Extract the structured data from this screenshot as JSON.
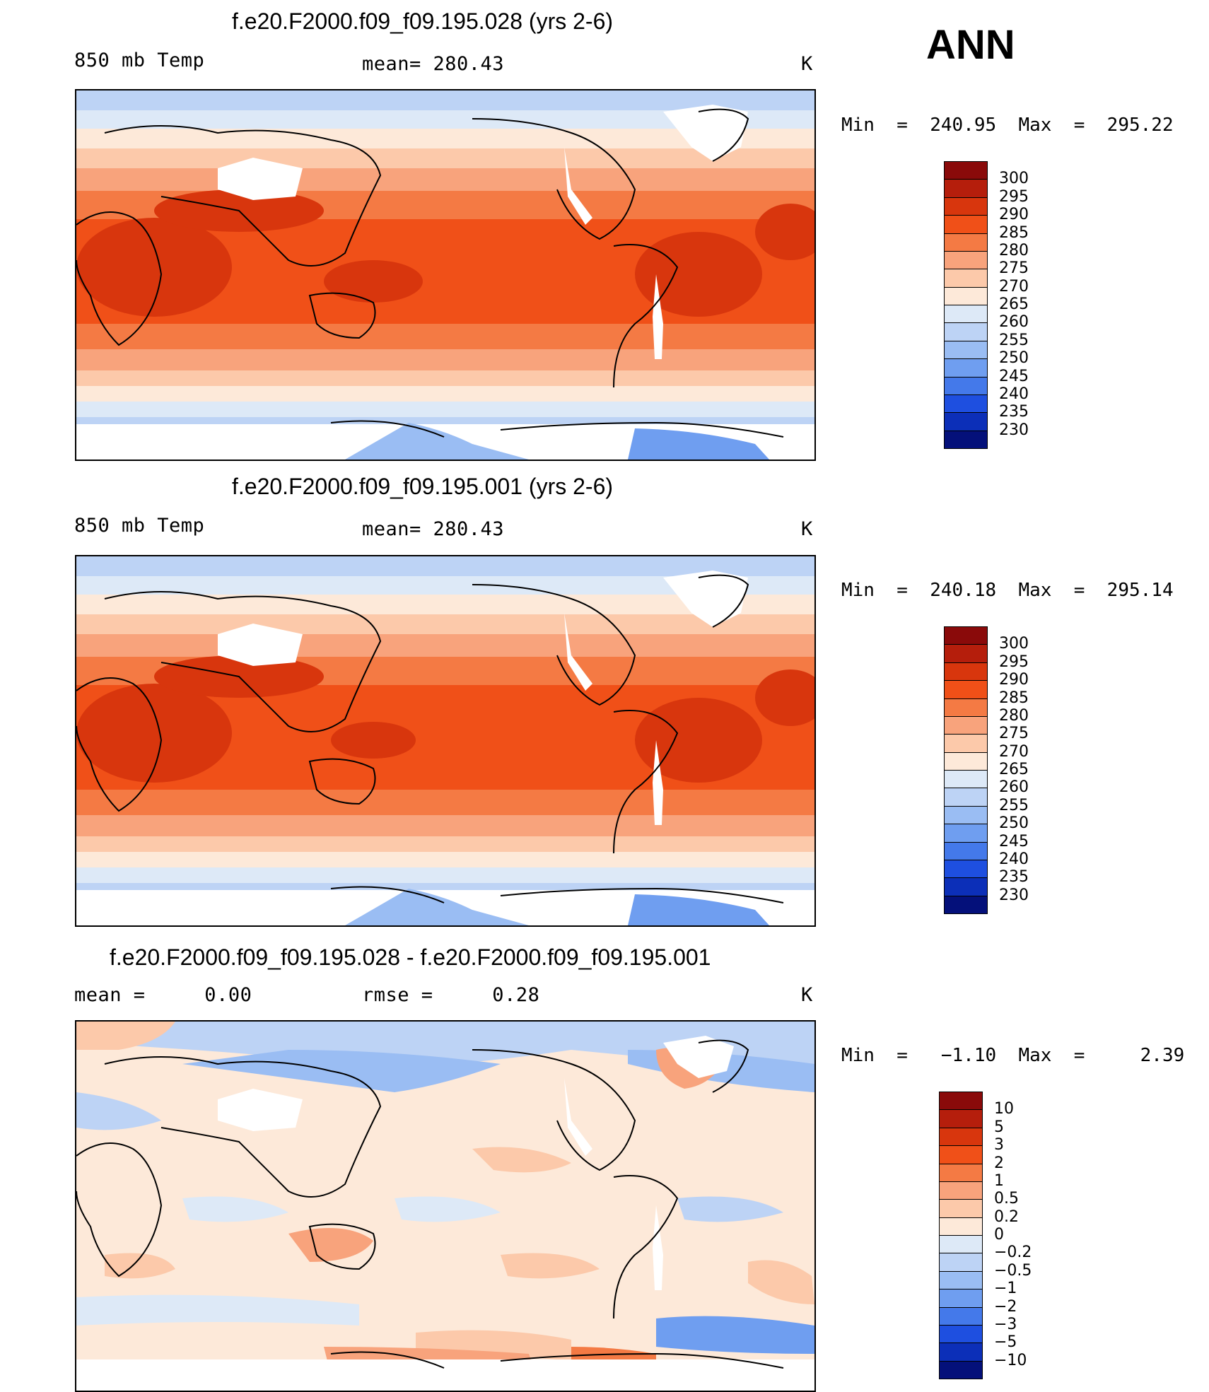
{
  "season": "ANN",
  "panels": [
    {
      "title": "f.e20.F2000.f09_f09.195.028 (yrs 2-6)",
      "variable": "850 mb Temp",
      "stat": "mean= 280.43",
      "units": "K",
      "minmax": "Min  =  240.95  Max  =  295.22",
      "type": "temperature"
    },
    {
      "title": "f.e20.F2000.f09_f09.195.001 (yrs 2-6)",
      "variable": "850 mb Temp",
      "stat": "mean= 280.43",
      "units": "K",
      "minmax": "Min  =  240.18  Max  =  295.14",
      "type": "temperature"
    },
    {
      "title": "f.e20.F2000.f09_f09.195.028 - f.e20.F2000.f09_f09.195.001",
      "variable": "mean =     0.00",
      "stat": "rmse =     0.28",
      "units": "K",
      "minmax": "Min  =   −1.10  Max  =     2.39",
      "type": "difference"
    }
  ],
  "colorbars": {
    "temperature": {
      "labels": [
        "300",
        "295",
        "290",
        "285",
        "280",
        "275",
        "270",
        "265",
        "260",
        "255",
        "250",
        "245",
        "240",
        "235",
        "230"
      ],
      "colors": [
        "#8a0a0a",
        "#b51e0c",
        "#d8360d",
        "#f05018",
        "#f47a44",
        "#f8a37c",
        "#fcc9aa",
        "#fde9d9",
        "#dde9f7",
        "#bdd3f5",
        "#9abdf3",
        "#6f9ef0",
        "#4479ea",
        "#1e4fe0",
        "#0c2fb8",
        "#04107a"
      ]
    },
    "difference": {
      "labels": [
        "10",
        "5",
        "3",
        "2",
        "1",
        "0.5",
        "0.2",
        "0",
        "−0.2",
        "−0.5",
        "−1",
        "−2",
        "−3",
        "−5",
        "−10"
      ],
      "colors": [
        "#8a0a0a",
        "#b51e0c",
        "#d8360d",
        "#f05018",
        "#f47a44",
        "#f8a37c",
        "#fcc9aa",
        "#fde9d9",
        "#dde9f7",
        "#bdd3f5",
        "#9abdf3",
        "#6f9ef0",
        "#4479ea",
        "#1e4fe0",
        "#0c2fb8",
        "#04107a"
      ]
    }
  }
}
